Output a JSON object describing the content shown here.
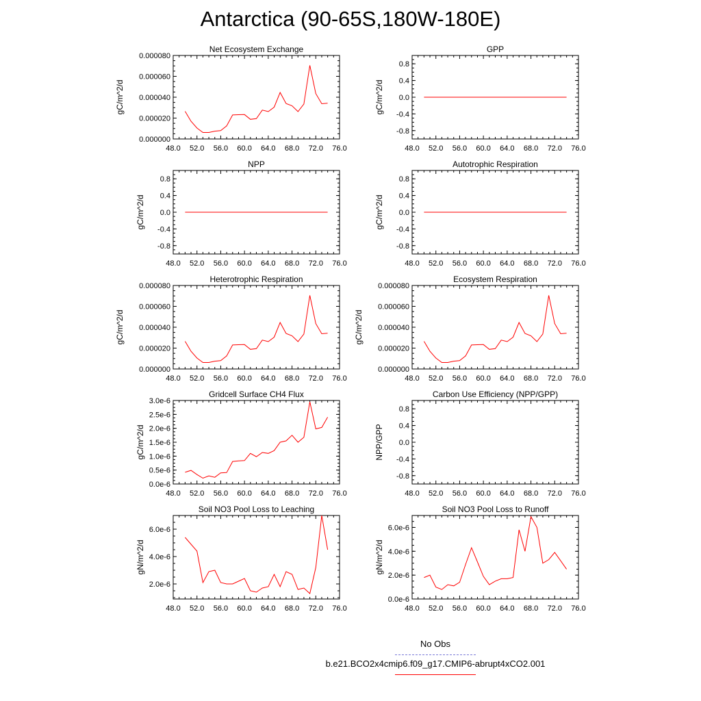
{
  "title": "Antarctica (90-65S,180W-180E)",
  "legend": {
    "obs_label": "No Obs",
    "obs_color": "#7a7ad8",
    "model_label": "b.e21.BCO2x4cmip6.f09_g17.CMIP6-abrupt4xCO2.001",
    "model_color": "#ff0000"
  },
  "chart_data": [
    {
      "type": "line",
      "title": "Net Ecosystem Exchange",
      "ylabel": "gC/m^2/d",
      "xlim": [
        48,
        76
      ],
      "xticks": [
        "48.0",
        "52.0",
        "56.0",
        "60.0",
        "64.0",
        "68.0",
        "72.0",
        "76.0"
      ],
      "ylim": [
        0,
        8e-05
      ],
      "yticks": [
        "0.000000",
        "0.000020",
        "0.000040",
        "0.000060",
        "0.000080"
      ],
      "x": [
        50,
        51,
        52,
        53,
        54,
        55,
        56,
        57,
        58,
        59,
        60,
        61,
        62,
        63,
        64,
        65,
        66,
        67,
        68,
        69,
        70,
        71,
        72,
        73,
        74
      ],
      "values": [
        2.65e-05,
        1.7e-05,
        1.05e-05,
        6.2e-06,
        6.2e-06,
        7.5e-06,
        8e-06,
        1.25e-05,
        2.3e-05,
        2.33e-05,
        2.34e-05,
        1.88e-05,
        1.95e-05,
        2.77e-05,
        2.62e-05,
        3.05e-05,
        4.45e-05,
        3.4e-05,
        3.18e-05,
        2.62e-05,
        3.35e-05,
        7.05e-05,
        4.35e-05,
        3.38e-05,
        3.42e-05
      ],
      "color": "#ff0000"
    },
    {
      "type": "line",
      "title": "GPP",
      "ylabel": "gC/m^2/d",
      "xlim": [
        48,
        76
      ],
      "xticks": [
        "48.0",
        "52.0",
        "56.0",
        "60.0",
        "64.0",
        "68.0",
        "72.0",
        "76.0"
      ],
      "ylim": [
        -1,
        1
      ],
      "yticks": [
        "-0.8",
        "-0.4",
        "0.0",
        "0.4",
        "0.8"
      ],
      "x": [
        50,
        74
      ],
      "values": [
        0,
        0
      ],
      "color": "#ff0000"
    },
    {
      "type": "line",
      "title": "NPP",
      "ylabel": "gC/m^2/d",
      "xlim": [
        48,
        76
      ],
      "xticks": [
        "48.0",
        "52.0",
        "56.0",
        "60.0",
        "64.0",
        "68.0",
        "72.0",
        "76.0"
      ],
      "ylim": [
        -1,
        1
      ],
      "yticks": [
        "-0.8",
        "-0.4",
        "0.0",
        "0.4",
        "0.8"
      ],
      "x": [
        50,
        74
      ],
      "values": [
        0,
        0
      ],
      "color": "#ff0000"
    },
    {
      "type": "line",
      "title": "Autotrophic Respiration",
      "ylabel": "gC/m^2/d",
      "xlim": [
        48,
        76
      ],
      "xticks": [
        "48.0",
        "52.0",
        "56.0",
        "60.0",
        "64.0",
        "68.0",
        "72.0",
        "76.0"
      ],
      "ylim": [
        -1,
        1
      ],
      "yticks": [
        "-0.8",
        "-0.4",
        "0.0",
        "0.4",
        "0.8"
      ],
      "x": [
        50,
        74
      ],
      "values": [
        0,
        0
      ],
      "color": "#ff0000"
    },
    {
      "type": "line",
      "title": "Heterotrophic Respiration",
      "ylabel": "gC/m^2/d",
      "xlim": [
        48,
        76
      ],
      "xticks": [
        "48.0",
        "52.0",
        "56.0",
        "60.0",
        "64.0",
        "68.0",
        "72.0",
        "76.0"
      ],
      "ylim": [
        0,
        8e-05
      ],
      "yticks": [
        "0.000000",
        "0.000020",
        "0.000040",
        "0.000060",
        "0.000080"
      ],
      "x": [
        50,
        51,
        52,
        53,
        54,
        55,
        56,
        57,
        58,
        59,
        60,
        61,
        62,
        63,
        64,
        65,
        66,
        67,
        68,
        69,
        70,
        71,
        72,
        73,
        74
      ],
      "values": [
        2.65e-05,
        1.7e-05,
        1.05e-05,
        6.2e-06,
        6.2e-06,
        7.5e-06,
        8e-06,
        1.25e-05,
        2.3e-05,
        2.33e-05,
        2.34e-05,
        1.88e-05,
        1.95e-05,
        2.77e-05,
        2.62e-05,
        3.05e-05,
        4.45e-05,
        3.4e-05,
        3.18e-05,
        2.62e-05,
        3.35e-05,
        7.05e-05,
        4.35e-05,
        3.38e-05,
        3.42e-05
      ],
      "color": "#ff0000"
    },
    {
      "type": "line",
      "title": "Ecosystem Respiration",
      "ylabel": "gC/m^2/d",
      "xlim": [
        48,
        76
      ],
      "xticks": [
        "48.0",
        "52.0",
        "56.0",
        "60.0",
        "64.0",
        "68.0",
        "72.0",
        "76.0"
      ],
      "ylim": [
        0,
        8e-05
      ],
      "yticks": [
        "0.000000",
        "0.000020",
        "0.000040",
        "0.000060",
        "0.000080"
      ],
      "x": [
        50,
        51,
        52,
        53,
        54,
        55,
        56,
        57,
        58,
        59,
        60,
        61,
        62,
        63,
        64,
        65,
        66,
        67,
        68,
        69,
        70,
        71,
        72,
        73,
        74
      ],
      "values": [
        2.65e-05,
        1.7e-05,
        1.05e-05,
        6.2e-06,
        6.2e-06,
        7.5e-06,
        8e-06,
        1.25e-05,
        2.3e-05,
        2.33e-05,
        2.34e-05,
        1.88e-05,
        1.95e-05,
        2.77e-05,
        2.62e-05,
        3.05e-05,
        4.45e-05,
        3.4e-05,
        3.18e-05,
        2.62e-05,
        3.35e-05,
        7.05e-05,
        4.35e-05,
        3.38e-05,
        3.42e-05
      ],
      "color": "#ff0000"
    },
    {
      "type": "line",
      "title": "Gridcell Surface CH4 Flux",
      "ylabel": "gC/m^2/d",
      "xlim": [
        48,
        76
      ],
      "xticks": [
        "48.0",
        "52.0",
        "56.0",
        "60.0",
        "64.0",
        "68.0",
        "72.0",
        "76.0"
      ],
      "ylim": [
        0,
        3e-06
      ],
      "yticks": [
        "0.0e-6",
        "0.5e-6",
        "1.0e-6",
        "1.5e-6",
        "2.0e-6",
        "2.5e-6",
        "3.0e-6"
      ],
      "x": [
        50,
        51,
        52,
        53,
        54,
        55,
        56,
        57,
        58,
        59,
        60,
        61,
        62,
        63,
        64,
        65,
        66,
        67,
        68,
        69,
        70,
        71,
        72,
        73,
        74
      ],
      "values": [
        4.2e-07,
        4.9e-07,
        3.4e-07,
        2.1e-07,
        2.9e-07,
        2.4e-07,
        4e-07,
        4.1e-07,
        8.1e-07,
        8.3e-07,
        8.4e-07,
        1.1e-06,
        9.8e-07,
        1.13e-06,
        1.1e-06,
        1.2e-06,
        1.5e-06,
        1.55e-06,
        1.75e-06,
        1.5e-06,
        1.68e-06,
        2.95e-06,
        1.98e-06,
        2.03e-06,
        2.4e-06
      ],
      "color": "#ff0000"
    },
    {
      "type": "line",
      "title": "Carbon Use Efficiency (NPP/GPP)",
      "ylabel": "NPP/GPP",
      "xlim": [
        48,
        76
      ],
      "xticks": [
        "48.0",
        "52.0",
        "56.0",
        "60.0",
        "64.0",
        "68.0",
        "72.0",
        "76.0"
      ],
      "ylim": [
        -1,
        1
      ],
      "yticks": [
        "-0.8",
        "-0.4",
        "0.0",
        "0.4",
        "0.8"
      ],
      "x": [],
      "values": [],
      "color": "#ff0000"
    },
    {
      "type": "line",
      "title": "Soil NO3 Pool Loss to Leaching",
      "ylabel": "gN/m^2/d",
      "xlim": [
        48,
        76
      ],
      "xticks": [
        "48.0",
        "52.0",
        "56.0",
        "60.0",
        "64.0",
        "68.0",
        "72.0",
        "76.0"
      ],
      "ylim": [
        9e-07,
        7e-06
      ],
      "yticks": [
        "2.0e-6",
        "4.0e-6",
        "6.0e-6"
      ],
      "ytick_values": [
        2e-06,
        4e-06,
        6e-06
      ],
      "x": [
        50,
        51,
        52,
        53,
        54,
        55,
        56,
        57,
        58,
        59,
        60,
        61,
        62,
        63,
        64,
        65,
        66,
        67,
        68,
        69,
        70,
        71,
        72,
        73,
        74
      ],
      "values": [
        5.4e-06,
        4.9e-06,
        4.4e-06,
        2.1e-06,
        2.9e-06,
        3e-06,
        2.1e-06,
        2e-06,
        2e-06,
        2.2e-06,
        2.4e-06,
        1.5e-06,
        1.4e-06,
        1.7e-06,
        1.8e-06,
        2.7e-06,
        1.8e-06,
        2.9e-06,
        2.7e-06,
        1.6e-06,
        1.7e-06,
        1.3e-06,
        3.2e-06,
        7e-06,
        4.5e-06
      ],
      "color": "#ff0000"
    },
    {
      "type": "line",
      "title": "Soil NO3 Pool Loss to Runoff",
      "ylabel": "gN/m^2/d",
      "xlim": [
        48,
        76
      ],
      "xticks": [
        "48.0",
        "52.0",
        "56.0",
        "60.0",
        "64.0",
        "68.0",
        "72.0",
        "76.0"
      ],
      "ylim": [
        0,
        7e-06
      ],
      "yticks": [
        "0.0e-6",
        "2.0e-6",
        "4.0e-6",
        "6.0e-6"
      ],
      "ytick_values": [
        0,
        2e-06,
        4e-06,
        6e-06
      ],
      "x": [
        50,
        51,
        52,
        53,
        54,
        55,
        56,
        57,
        58,
        59,
        60,
        61,
        62,
        63,
        64,
        65,
        66,
        67,
        68,
        69,
        70,
        71,
        72,
        73,
        74
      ],
      "values": [
        1.8e-06,
        2e-06,
        1e-06,
        8e-07,
        1.2e-06,
        1.1e-06,
        1.4e-06,
        2.9e-06,
        4.3e-06,
        3.1e-06,
        1.9e-06,
        1.2e-06,
        1.5e-06,
        1.7e-06,
        1.7e-06,
        1.8e-06,
        5.8e-06,
        4e-06,
        6.9e-06,
        6e-06,
        3e-06,
        3.3e-06,
        3.9e-06,
        3.2e-06,
        2.5e-06
      ],
      "color": "#ff0000"
    }
  ]
}
